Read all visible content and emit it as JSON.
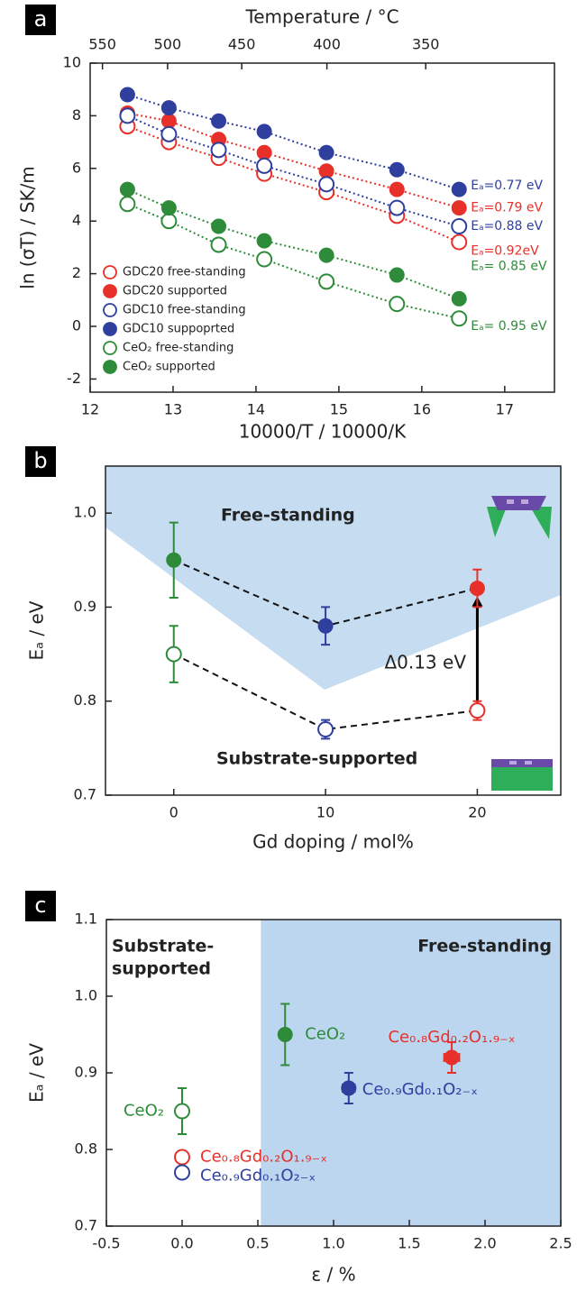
{
  "chart_data": [
    {
      "type": "scatter",
      "panel": "a",
      "x2label": "Temperature / °C",
      "x2ticks": [
        550,
        500,
        450,
        400,
        350
      ],
      "xlabel": "10000/T / 10000/K",
      "ylabel": "ln (σT) / SK/m",
      "xlim": [
        12,
        17.6
      ],
      "xticks": [
        12,
        13,
        14,
        15,
        16,
        17
      ],
      "ylim": [
        -2.5,
        10
      ],
      "yticks": [
        -2,
        0,
        2,
        4,
        6,
        8,
        10
      ],
      "legend": "lower left",
      "x": [
        12.45,
        12.95,
        13.55,
        14.1,
        14.85,
        15.7,
        16.45
      ],
      "series": [
        {
          "name": "GDC20 free-standing",
          "color": "#e8302a",
          "marker": "open",
          "values": [
            7.6,
            7.0,
            6.4,
            5.8,
            5.1,
            4.2,
            3.2
          ],
          "label": "Eₐ=0.92eV"
        },
        {
          "name": "GDC20 supported",
          "color": "#e8302a",
          "marker": "filled",
          "values": [
            8.1,
            7.8,
            7.1,
            6.6,
            5.9,
            5.2,
            4.5
          ],
          "label": "Eₐ=0.79 eV"
        },
        {
          "name": "GDC10 free-standing",
          "color": "#2f3f9e",
          "marker": "open",
          "values": [
            8.0,
            7.3,
            6.7,
            6.1,
            5.4,
            4.5,
            3.8
          ],
          "label": "Eₐ=0.88 eV"
        },
        {
          "name": "GDC10 suppoprted",
          "color": "#2f3f9e",
          "marker": "filled",
          "values": [
            8.8,
            8.3,
            7.8,
            7.4,
            6.6,
            5.95,
            5.2
          ],
          "label": "Eₐ=0.77 eV"
        },
        {
          "name": "CeO₂ free-standing",
          "color": "#2e8b3a",
          "marker": "open",
          "values": [
            4.65,
            4.0,
            3.1,
            2.55,
            1.7,
            0.85,
            0.3
          ],
          "label": "Eₐ= 0.95 eV"
        },
        {
          "name": "CeO₂ supported",
          "color": "#2e8b3a",
          "marker": "filled",
          "values": [
            5.2,
            4.5,
            3.8,
            3.25,
            2.7,
            1.95,
            1.05
          ],
          "label": "Eₐ= 0.85 eV"
        }
      ]
    },
    {
      "type": "errorbar",
      "panel": "b",
      "xlabel": "Gd doping / mol%",
      "ylabel": "Eₐ / eV",
      "xlim": [
        -4.5,
        25.5
      ],
      "xticks": [
        0,
        10,
        20
      ],
      "ylim": [
        0.7,
        1.05
      ],
      "yticks": [
        0.7,
        0.8,
        0.9,
        {
          "value": 1,
          "label": "1.0"
        }
      ],
      "x": [
        0,
        10,
        20
      ],
      "series": [
        {
          "marker": "filled",
          "colors": [
            "#2e8b3a",
            "#2f3f9e",
            "#e8302a"
          ],
          "values": [
            0.95,
            0.88,
            0.92
          ],
          "errors": [
            0.04,
            0.02,
            0.02
          ]
        },
        {
          "marker": "open",
          "colors": [
            "#2e8b3a",
            "#2f3f9e",
            "#e8302a"
          ],
          "values": [
            0.85,
            0.77,
            0.79
          ],
          "errors": [
            0.03,
            0.01,
            0.01
          ]
        }
      ],
      "annotations": [
        "Free-standing",
        "Substrate-supported",
        "Δ0.13 eV"
      ]
    },
    {
      "type": "errorbar",
      "panel": "c",
      "xlabel": "ε / %",
      "ylabel": "Eₐ / eV",
      "xlim": [
        -0.5,
        2.5
      ],
      "xticks": [
        -0.5,
        {
          "value": 0,
          "label": "0.0"
        },
        0.5,
        {
          "value": 1,
          "label": "1.0"
        },
        1.5,
        {
          "value": 2,
          "label": "2.0"
        },
        2.5
      ],
      "ylim": [
        0.7,
        1.1
      ],
      "yticks": [
        0.7,
        0.8,
        0.9,
        {
          "value": 1,
          "label": "1.0"
        },
        1.1
      ],
      "shade_from": 0.52,
      "series": [
        {
          "marker": "filled",
          "colors": [
            "#2e8b3a",
            "#2f3f9e",
            "#e8302a"
          ],
          "x": [
            0.68,
            1.1,
            1.78
          ],
          "xerrors": [
            null,
            0.04,
            0.05
          ],
          "values": [
            0.95,
            0.88,
            0.92
          ],
          "errors": [
            0.04,
            0.02,
            0.02
          ],
          "labels": [
            "CeO₂",
            "Ce₀.₉Gd₀.₁O₂₋ₓ",
            "Ce₀.₈Gd₀.₂O₁.₉₋ₓ"
          ]
        },
        {
          "marker": "open",
          "colors": [
            "#2e8b3a",
            "#e8302a",
            "#2f3f9e"
          ],
          "x": [
            0,
            0,
            0
          ],
          "values": [
            0.85,
            0.79,
            0.77
          ],
          "errors": [
            0.03,
            null,
            null
          ],
          "labels": [
            "CeO₂",
            "Ce₀.₈Gd₀.₂O₁.₉₋ₓ",
            "Ce₀.₉Gd₀.₁O₂₋ₓ"
          ]
        }
      ],
      "annotations": [
        [
          "Substrate-",
          "supported"
        ],
        "Free-standing"
      ]
    }
  ]
}
